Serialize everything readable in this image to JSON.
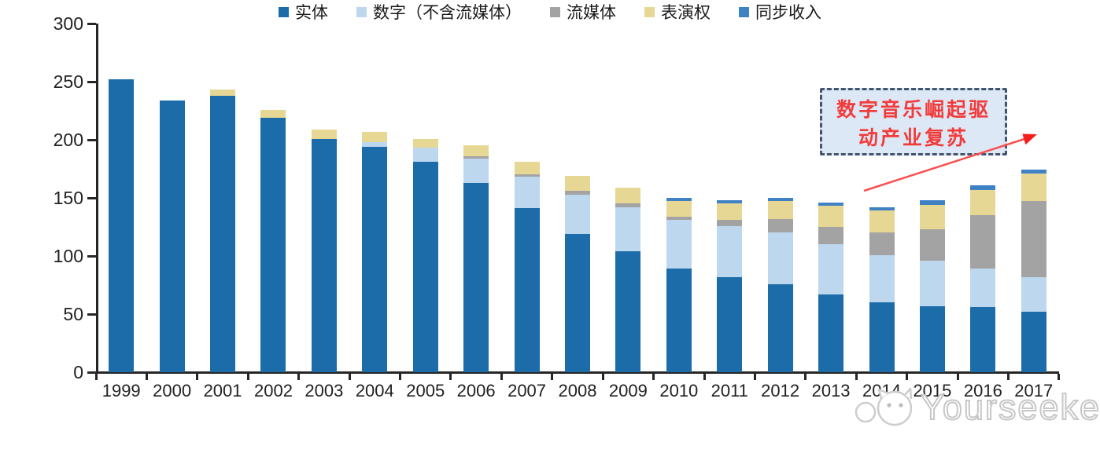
{
  "chart_data": {
    "type": "bar",
    "stacked": true,
    "title": "",
    "xlabel": "",
    "ylabel": "",
    "ylim": [
      0,
      300
    ],
    "yticks": [
      0,
      50,
      100,
      150,
      200,
      250,
      300
    ],
    "grid": false,
    "legend_position": "bottom",
    "categories": [
      "1999",
      "2000",
      "2001",
      "2002",
      "2003",
      "2004",
      "2005",
      "2006",
      "2007",
      "2008",
      "2009",
      "2010",
      "2011",
      "2012",
      "2013",
      "2014",
      "2015",
      "2016",
      "2017"
    ],
    "series": [
      {
        "name": "实体",
        "color": "#1B6CA8",
        "values": [
          252,
          234,
          238,
          219,
          201,
          194,
          181,
          163,
          141,
          119,
          104,
          89,
          82,
          76,
          67,
          60,
          57,
          56,
          52
        ]
      },
      {
        "name": "数字（不含流媒体）",
        "color": "#BDD7EE",
        "values": [
          0,
          0,
          0,
          0,
          0,
          4,
          12,
          21,
          27,
          34,
          38,
          42,
          44,
          44,
          43,
          41,
          39,
          33,
          30
        ]
      },
      {
        "name": "流媒体",
        "color": "#A3A3A3",
        "values": [
          0,
          0,
          0,
          0,
          0,
          0,
          0,
          2,
          2,
          3,
          3,
          3,
          5,
          12,
          15,
          19,
          27,
          46,
          65
        ]
      },
      {
        "name": "表演权",
        "color": "#E7D795",
        "values": [
          0,
          0,
          5,
          7,
          8,
          9,
          8,
          9,
          11,
          13,
          14,
          13,
          14,
          15,
          18,
          19,
          21,
          22,
          24
        ]
      },
      {
        "name": "同步收入",
        "color": "#3E82C4",
        "values": [
          0,
          0,
          0,
          0,
          0,
          0,
          0,
          0,
          0,
          0,
          0,
          3,
          3,
          3,
          3,
          3,
          4,
          4,
          3
        ]
      }
    ],
    "annotation": "数字音乐崛起驱动产业复苏"
  },
  "annotation": {
    "line1": "数字音乐崛起驱",
    "line2": "动产业复苏",
    "arrow_color": "#F95050",
    "box_border_color": "#44546A",
    "box_fill_color": "#DCE8F6",
    "text_color": "#F23B3B"
  },
  "watermark": {
    "text": "Yourseeker"
  },
  "axis": {
    "line_color": "#262626",
    "label_color": "#212121"
  }
}
